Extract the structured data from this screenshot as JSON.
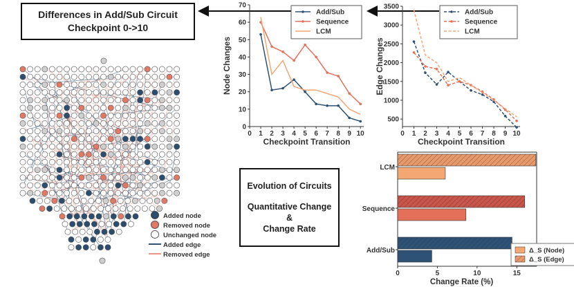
{
  "diagram": {
    "title_line1": "Differences in Add/Sub Circuit",
    "title_line2": "Checkpoint 0->10",
    "legend": {
      "added_node": "Added node",
      "removed_node": "Removed node",
      "unchanged_node": "Unchanged node",
      "added_edge": "Added edge",
      "removed_edge": "Removed edge"
    }
  },
  "evolution_box": {
    "line1": "Evolution of Circuits",
    "line2": "Quantitative Change",
    "line3": "&",
    "line4": "Change Rate"
  },
  "colors": {
    "addsub": "#2d5275",
    "sequence": "#e4705a",
    "lcm": "#f4a673",
    "added_node": "#2d4d6e",
    "removed_node": "#e07a66",
    "unchanged_node": "#ffffff",
    "grey_node": "#cfcfcf"
  },
  "chart_data": [
    {
      "type": "line",
      "title": "",
      "xlabel": "Checkpoint Transition",
      "ylabel": "Node Changes",
      "x": [
        1,
        2,
        3,
        4,
        5,
        6,
        7,
        8,
        9,
        10
      ],
      "xticks": [
        "0",
        "1",
        "2",
        "3",
        "4",
        "5",
        "6",
        "7",
        "8",
        "9",
        "10"
      ],
      "yticks": [
        "0",
        "10",
        "20",
        "30",
        "40",
        "50",
        "60",
        "70"
      ],
      "xlim": [
        0,
        10.3
      ],
      "ylim": [
        0,
        70
      ],
      "series": [
        {
          "name": "Add/Sub",
          "values": [
            53,
            21,
            22,
            27,
            20,
            13,
            12,
            12,
            5,
            3
          ]
        },
        {
          "name": "Sequence",
          "values": [
            60,
            46,
            43,
            38,
            47,
            40,
            31,
            29,
            19,
            13
          ]
        },
        {
          "name": "LCM",
          "values": [
            63,
            30,
            38,
            23,
            21,
            21,
            19,
            17,
            10,
            7
          ]
        }
      ]
    },
    {
      "type": "line",
      "title": "",
      "xlabel": "Checkpoint Transition",
      "ylabel": "Edge Changes",
      "x": [
        1,
        2,
        3,
        4,
        5,
        6,
        7,
        8,
        9,
        10
      ],
      "xticks": [
        "0",
        "1",
        "2",
        "3",
        "4",
        "5",
        "6",
        "7",
        "8",
        "9",
        "10"
      ],
      "yticks": [
        "500",
        "1000",
        "1500",
        "2000",
        "2500",
        "3000",
        "3500"
      ],
      "xlim": [
        0,
        10.3
      ],
      "ylim": [
        300,
        3500
      ],
      "series": [
        {
          "name": "Add/Sub",
          "values": [
            2560,
            1730,
            1420,
            1750,
            1500,
            1260,
            1150,
            960,
            580,
            280
          ]
        },
        {
          "name": "Sequence",
          "values": [
            2270,
            1900,
            1830,
            1400,
            1500,
            1400,
            1230,
            1020,
            750,
            450
          ]
        },
        {
          "name": "LCM",
          "values": [
            3400,
            2200,
            2000,
            1500,
            1600,
            1400,
            1200,
            1000,
            780,
            560
          ]
        }
      ]
    },
    {
      "type": "bar",
      "orientation": "horizontal",
      "categories": [
        "LCM",
        "Sequence",
        "Add/Sub"
      ],
      "xlabel": "Change Rate (%)",
      "xticks": [
        "0",
        "5",
        "10",
        "15"
      ],
      "xlim": [
        0,
        17.5
      ],
      "series": [
        {
          "name": "Δ_S (Node)",
          "values": [
            6.0,
            8.6,
            4.3
          ]
        },
        {
          "name": "Δ_S (Edge)",
          "values": [
            17.4,
            16.0,
            14.4
          ]
        }
      ]
    }
  ]
}
